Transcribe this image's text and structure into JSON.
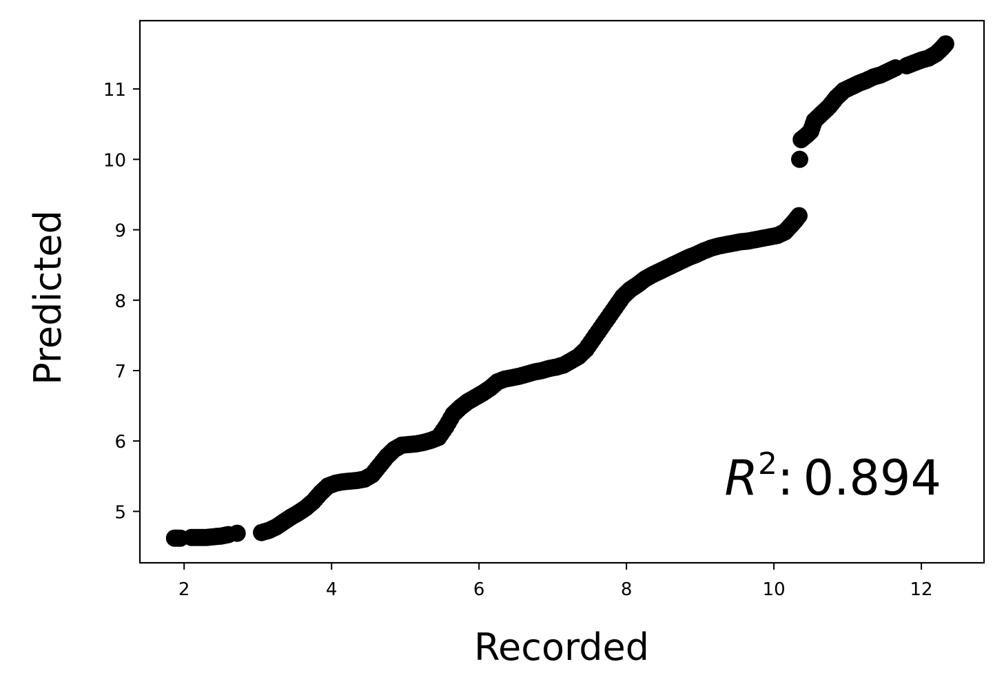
{
  "chart_data": {
    "type": "scatter",
    "xlabel": "Recorded",
    "ylabel": "Predicted",
    "xlim": [
      1.4,
      12.85
    ],
    "ylim": [
      4.27,
      11.97
    ],
    "x_ticks": [
      2,
      4,
      6,
      8,
      10,
      12
    ],
    "y_ticks": [
      5,
      6,
      7,
      8,
      9,
      10,
      11
    ],
    "x_tick_labels": [
      "2",
      "4",
      "6",
      "8",
      "10",
      "12"
    ],
    "y_tick_labels": [
      "5",
      "6",
      "7",
      "8",
      "9",
      "10",
      "11"
    ],
    "grid": false,
    "marker_color": "#000000",
    "annotation": {
      "symbol": "R",
      "superscript": "2",
      "separator": ":",
      "value": "0.894"
    },
    "series": [
      {
        "x": [
          1.87,
          1.95,
          2.1,
          2.2,
          2.3,
          2.4,
          2.5,
          2.6,
          2.72,
          3.05,
          3.15,
          3.25,
          3.35,
          3.45,
          3.55,
          3.65,
          3.75,
          3.85,
          3.95,
          4.05,
          4.15,
          4.25,
          4.35,
          4.45,
          4.55,
          4.65,
          4.75,
          4.85,
          4.95,
          5.05,
          5.15,
          5.25,
          5.35,
          5.45,
          5.55,
          5.65,
          5.75,
          5.85,
          5.95,
          6.05,
          6.15,
          6.25,
          6.35,
          6.45,
          6.55,
          6.65,
          6.75,
          6.85,
          6.95,
          7.05,
          7.15,
          7.25,
          7.35,
          7.45,
          7.55,
          7.65,
          7.75,
          7.85,
          7.95,
          8.05,
          8.15,
          8.25,
          8.35,
          8.45,
          8.55,
          8.65,
          8.75,
          8.85,
          8.95,
          9.05,
          9.15,
          9.25,
          9.35,
          9.45,
          9.55,
          9.65,
          9.75,
          9.85,
          9.95,
          10.05,
          10.15,
          10.22,
          10.28,
          10.34,
          10.35,
          10.37,
          10.45,
          10.5,
          10.55,
          10.65,
          10.75,
          10.85,
          10.95,
          11.05,
          11.15,
          11.25,
          11.35,
          11.45,
          11.55,
          11.65,
          11.8,
          11.9,
          12.0,
          12.1,
          12.2,
          12.28,
          12.33
        ],
        "y": [
          4.62,
          4.62,
          4.63,
          4.63,
          4.63,
          4.64,
          4.65,
          4.67,
          4.69,
          4.7,
          4.73,
          4.78,
          4.85,
          4.92,
          4.98,
          5.05,
          5.14,
          5.26,
          5.36,
          5.4,
          5.42,
          5.43,
          5.44,
          5.46,
          5.52,
          5.65,
          5.78,
          5.88,
          5.94,
          5.95,
          5.96,
          5.98,
          6.01,
          6.05,
          6.2,
          6.38,
          6.48,
          6.56,
          6.62,
          6.68,
          6.75,
          6.84,
          6.88,
          6.9,
          6.92,
          6.95,
          6.98,
          7.0,
          7.03,
          7.05,
          7.08,
          7.14,
          7.2,
          7.3,
          7.45,
          7.6,
          7.75,
          7.9,
          8.05,
          8.15,
          8.22,
          8.3,
          8.36,
          8.41,
          8.46,
          8.51,
          8.56,
          8.61,
          8.65,
          8.7,
          8.74,
          8.77,
          8.79,
          8.81,
          8.83,
          8.84,
          8.86,
          8.88,
          8.9,
          8.92,
          8.97,
          9.05,
          9.12,
          9.2,
          10.0,
          10.28,
          10.35,
          10.4,
          10.55,
          10.65,
          10.75,
          10.88,
          10.98,
          11.03,
          11.08,
          11.12,
          11.17,
          11.2,
          11.25,
          11.3,
          11.33,
          11.37,
          11.41,
          11.44,
          11.5,
          11.58,
          11.64
        ]
      }
    ]
  }
}
